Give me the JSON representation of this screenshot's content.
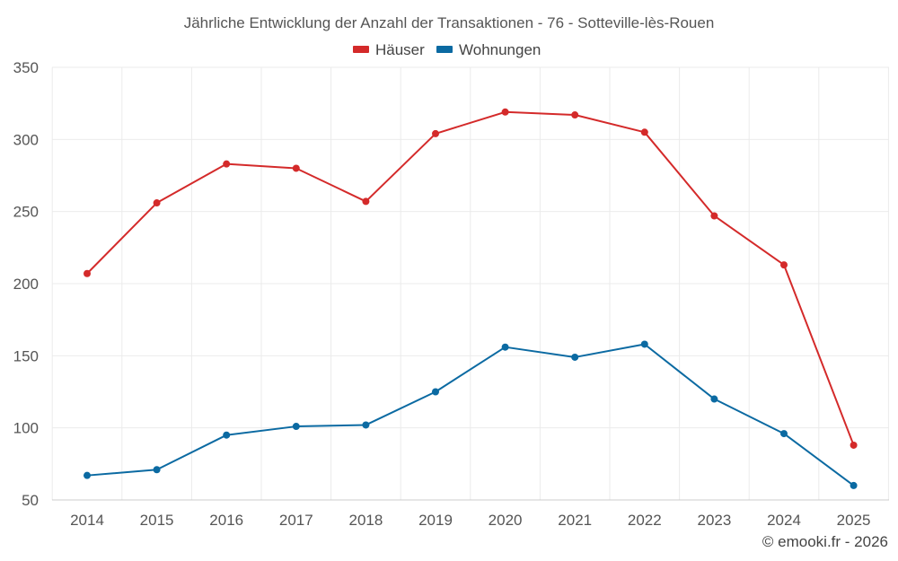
{
  "chart_data": {
    "type": "line",
    "title": "Jährliche Entwicklung der Anzahl der Transaktionen - 76 - Sotteville-lès-Rouen",
    "x": [
      "2014",
      "2015",
      "2016",
      "2017",
      "2018",
      "2019",
      "2020",
      "2021",
      "2022",
      "2023",
      "2024",
      "2025"
    ],
    "yticks": [
      "50",
      "100",
      "150",
      "200",
      "250",
      "300",
      "350"
    ],
    "ylim": [
      50,
      350
    ],
    "grid": true,
    "legend_position": "top-center",
    "series": [
      {
        "name": "Häuser",
        "color": "#d42a2a",
        "values": [
          207,
          256,
          283,
          280,
          257,
          304,
          319,
          317,
          305,
          247,
          213,
          88
        ]
      },
      {
        "name": "Wohnungen",
        "color": "#0b6aa2",
        "values": [
          67,
          71,
          95,
          101,
          102,
          125,
          156,
          149,
          158,
          120,
          96,
          60
        ]
      }
    ],
    "copyright": "© emooki.fr - 2026"
  }
}
